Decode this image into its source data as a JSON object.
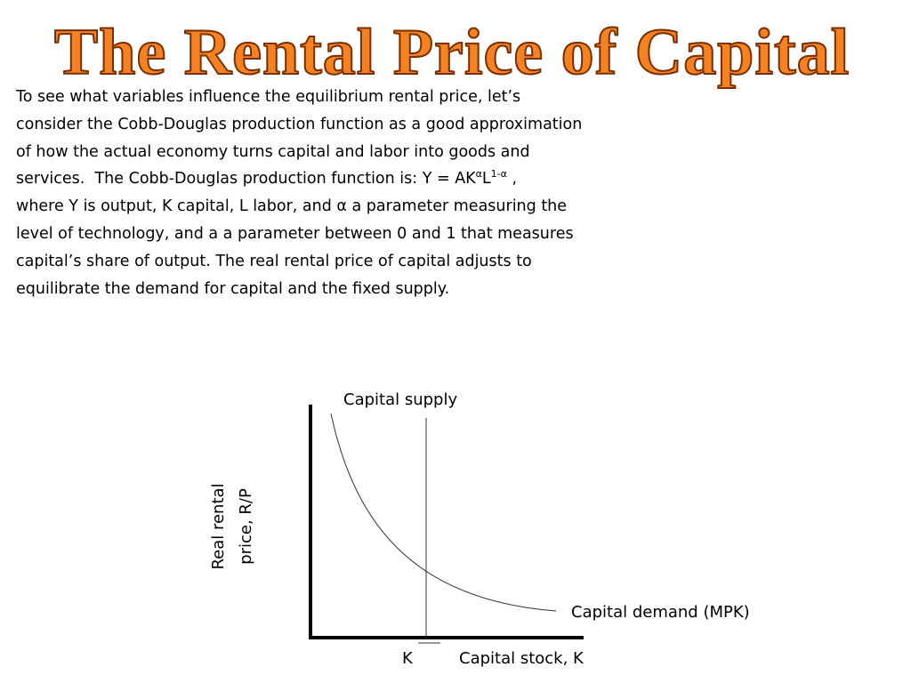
{
  "title": "The Rental Price of Capital",
  "body": {
    "lines": [
      [
        {
          "text": "To see what variables influence the equilibrium rental price, let’s"
        }
      ],
      [
        {
          "text": "consider the Cobb-Douglas production function as a good approximation"
        }
      ],
      [
        {
          "text": "of how the actual economy turns capital and labor into goods and"
        }
      ],
      [
        {
          "text": "services.  The Cobb-Douglas production function is: Y = AK"
        },
        {
          "text": "α",
          "sup": true
        },
        {
          "text": "L"
        },
        {
          "text": "1-α",
          "sup": true
        },
        {
          "text": " ,"
        }
      ],
      [
        {
          "text": "where Y is output, K capital, L labor, and "
        },
        {
          "text": "α"
        },
        {
          "text": " a parameter measuring the"
        }
      ],
      [
        {
          "text": "level of technology, and a a parameter between 0 and 1 that measures"
        }
      ],
      [
        {
          "text": "capital’s share of output. The real rental price of capital adjusts to"
        }
      ],
      [
        {
          "text": "equilibrate the demand for capital and the fixed supply."
        }
      ]
    ]
  },
  "diagram": {
    "supply_label": "Capital supply",
    "y_axis_label": [
      "Real rental",
      "price, R/P"
    ],
    "demand_label": "Capital demand (MPK)",
    "k_label": "K",
    "x_axis_label": "Capital stock, K"
  }
}
